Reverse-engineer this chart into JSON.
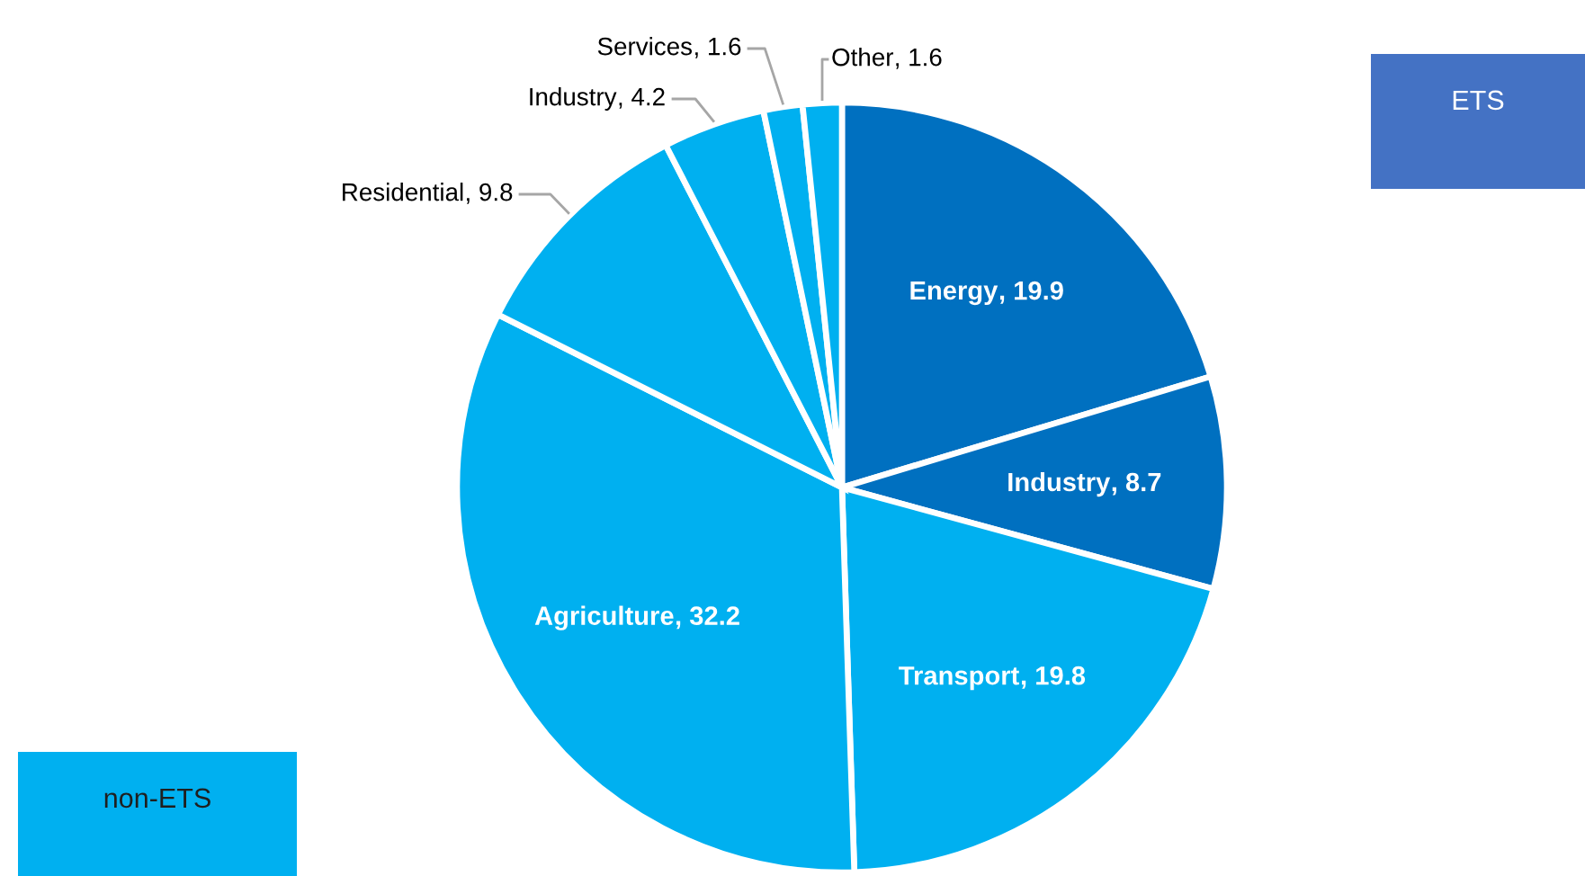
{
  "chart_data": {
    "type": "pie",
    "categories": [
      "Energy",
      "Industry",
      "Transport",
      "Agriculture",
      "Residential",
      "Industry",
      "Services",
      "Other"
    ],
    "values": [
      19.9,
      8.7,
      19.8,
      32.2,
      9.8,
      4.2,
      1.6,
      1.6
    ],
    "colors": [
      "#0070c0",
      "#0070c0",
      "#00b0f0",
      "#00b0f0",
      "#00b0f0",
      "#00b0f0",
      "#00b0f0",
      "#00b0f0"
    ],
    "value_labels": [
      ", 19.9",
      ", 8.7",
      ", 19.8",
      ", 32.2",
      ", 9.8",
      ", 4.2",
      ", 1.6",
      ", 1.6"
    ],
    "annotations": [
      "ETS",
      "non-ETS"
    ]
  }
}
